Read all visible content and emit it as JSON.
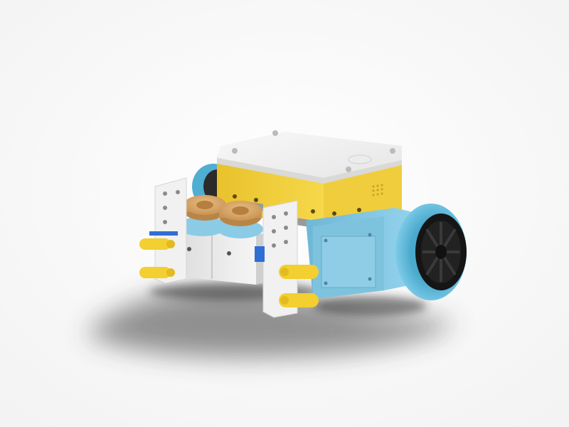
{
  "scene": {
    "subject": "robot-model",
    "background_color": "#ffffff",
    "colors": {
      "hub_body": "#f2cf3a",
      "hub_top": "#f4f4f4",
      "motor_body": "#e9e9e9",
      "beam_white": "#f1f1f1",
      "pin_yellow": "#f3cf2f",
      "azure": "#7cc6e2",
      "tire_azure": "#55b8db",
      "wheel_black": "#151515",
      "gear_tan": "#d9a86a",
      "shadow": "#2c2c2c"
    }
  }
}
